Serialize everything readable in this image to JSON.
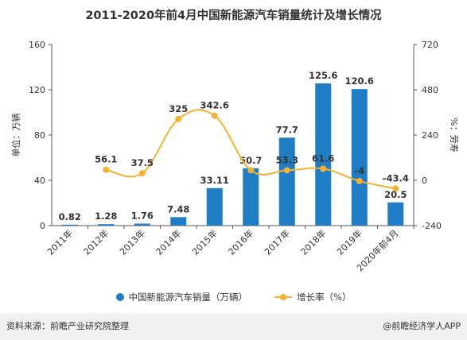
{
  "chart_data": {
    "type": "bar",
    "title": "2011-2020年前4月中国新能源汽车销量统计及增长情况",
    "ylabel": "单位：万辆",
    "y2label": "%：劳寿",
    "categories": [
      "2011年",
      "2012年",
      "2013年",
      "2014年",
      "2015年",
      "2016年",
      "2017年",
      "2018年",
      "2019年",
      "2020年前4月"
    ],
    "ylim": [
      0,
      160
    ],
    "yticks": [
      0,
      40,
      80,
      120,
      160
    ],
    "y2lim": [
      -240,
      720
    ],
    "y2ticks": [
      -240,
      0,
      240,
      480,
      720
    ],
    "series": [
      {
        "name": "中国新能源汽车销量（万辆）",
        "type": "bar",
        "axis": "left",
        "color": "#1f7dc6",
        "values": [
          0.82,
          1.28,
          1.76,
          7.48,
          33.11,
          50.7,
          77.7,
          125.6,
          120.6,
          20.5
        ],
        "labels": [
          "0.82",
          "1.28",
          "1.76",
          "7.48",
          "33.11",
          "50.7",
          "77.7",
          "125.6",
          "120.6",
          "20.5"
        ]
      },
      {
        "name": "增长率（%）",
        "type": "line",
        "axis": "right",
        "color": "#f5b12f",
        "values": [
          null,
          56.1,
          37.5,
          325,
          342.6,
          53.3,
          53.3,
          61.6,
          -4,
          -43.4
        ],
        "labels": [
          "",
          "56.1",
          "37.5",
          "325",
          "342.6",
          "",
          "53.3",
          "61.6",
          "-4",
          "-43.4"
        ]
      }
    ],
    "grid": false,
    "legend": "bottom"
  },
  "legend": {
    "bar_label": "中国新能源汽车销量（万辆）",
    "line_label": "增长率（%）"
  },
  "footer": {
    "source": "资料来源：前瞻产业研究院整理",
    "brand": "@前瞻经济学人APP"
  },
  "colors": {
    "bar": "#1f7dc6",
    "line": "#f5b12f",
    "footer_bg": "#f1f1f1"
  }
}
